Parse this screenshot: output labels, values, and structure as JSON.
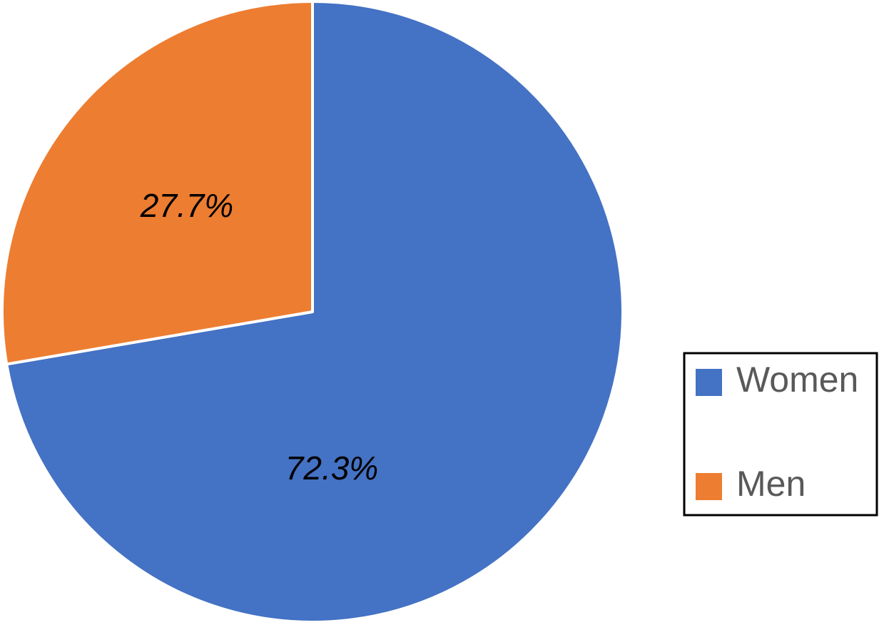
{
  "chart_data": {
    "type": "pie",
    "categories": [
      "Women",
      "Men"
    ],
    "values": [
      72.3,
      27.7
    ],
    "value_labels": [
      "72.3%",
      "27.7%"
    ],
    "colors": [
      "#4472c4",
      "#ed7d31"
    ],
    "legend": "right"
  }
}
